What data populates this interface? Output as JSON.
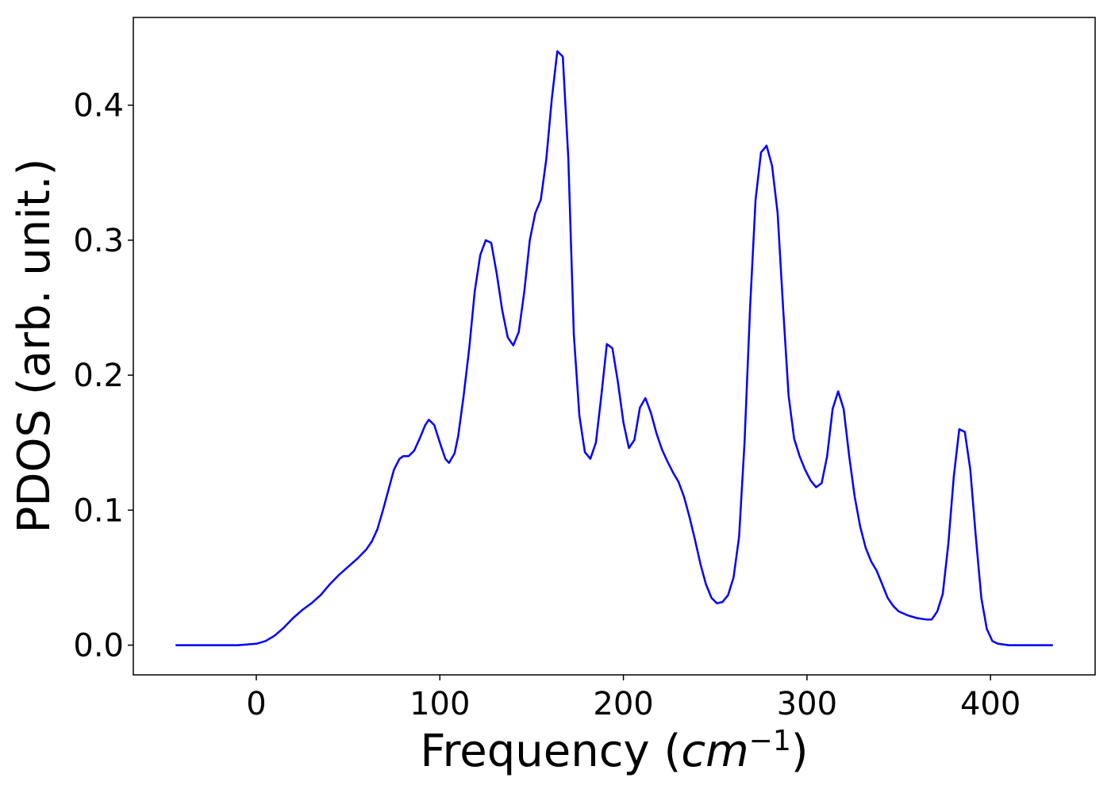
{
  "chart_data": {
    "type": "line",
    "title": "",
    "xlabel": "Frequency (",
    "xlabel_math": "cm",
    "xlabel_sup": "−1",
    "xlabel_close": ")",
    "ylabel": "PDOS (arb. unit.)",
    "xlim": [
      -67,
      457
    ],
    "ylim": [
      -0.022,
      0.465
    ],
    "xticks": [
      0,
      100,
      200,
      300,
      400
    ],
    "xtick_labels": [
      "0",
      "100",
      "200",
      "300",
      "400"
    ],
    "yticks": [
      0.0,
      0.1,
      0.2,
      0.3,
      0.4
    ],
    "ytick_labels": [
      "0.0",
      "0.1",
      "0.2",
      "0.3",
      "0.4"
    ],
    "grid": false,
    "legend": "none",
    "series": [
      {
        "color": "#0000ff",
        "x": [
          -44,
          -10,
          0,
          5,
          10,
          15,
          20,
          25,
          30,
          35,
          40,
          45,
          50,
          55,
          60,
          63,
          66,
          69,
          72,
          75,
          78,
          80,
          83,
          86,
          89,
          92,
          94,
          97,
          100,
          103,
          105,
          108,
          110,
          113,
          116,
          119,
          122,
          125,
          128,
          131,
          134,
          137,
          140,
          143,
          146,
          149,
          152,
          155,
          158,
          161,
          164,
          167,
          170,
          173,
          176,
          179,
          182,
          185,
          188,
          191,
          194,
          197,
          200,
          203,
          206,
          209,
          212,
          215,
          218,
          221,
          224,
          227,
          230,
          233,
          236,
          239,
          242,
          245,
          248,
          251,
          254,
          257,
          260,
          263,
          266,
          269,
          272,
          275,
          278,
          281,
          284,
          287,
          290,
          293,
          296,
          299,
          302,
          305,
          308,
          311,
          314,
          317,
          320,
          323,
          326,
          329,
          332,
          335,
          338,
          341,
          344,
          347,
          350,
          355,
          360,
          365,
          368,
          371,
          374,
          377,
          380,
          383,
          386,
          389,
          392,
          395,
          398,
          401,
          404,
          410,
          434
        ],
        "y": [
          0,
          0,
          0.001,
          0.003,
          0.007,
          0.013,
          0.02,
          0.026,
          0.031,
          0.037,
          0.045,
          0.052,
          0.058,
          0.064,
          0.071,
          0.077,
          0.086,
          0.1,
          0.115,
          0.13,
          0.138,
          0.14,
          0.14,
          0.144,
          0.153,
          0.163,
          0.167,
          0.163,
          0.15,
          0.138,
          0.135,
          0.142,
          0.155,
          0.185,
          0.22,
          0.262,
          0.289,
          0.3,
          0.298,
          0.275,
          0.248,
          0.228,
          0.222,
          0.232,
          0.262,
          0.3,
          0.32,
          0.33,
          0.36,
          0.405,
          0.44,
          0.436,
          0.36,
          0.23,
          0.17,
          0.143,
          0.138,
          0.15,
          0.185,
          0.223,
          0.22,
          0.195,
          0.165,
          0.146,
          0.152,
          0.176,
          0.183,
          0.172,
          0.157,
          0.145,
          0.136,
          0.128,
          0.121,
          0.11,
          0.095,
          0.078,
          0.06,
          0.045,
          0.035,
          0.031,
          0.032,
          0.037,
          0.05,
          0.08,
          0.15,
          0.25,
          0.33,
          0.365,
          0.37,
          0.355,
          0.32,
          0.25,
          0.185,
          0.153,
          0.14,
          0.13,
          0.122,
          0.117,
          0.12,
          0.14,
          0.175,
          0.188,
          0.175,
          0.14,
          0.11,
          0.088,
          0.072,
          0.062,
          0.055,
          0.045,
          0.035,
          0.029,
          0.025,
          0.022,
          0.02,
          0.019,
          0.019,
          0.025,
          0.038,
          0.075,
          0.125,
          0.16,
          0.158,
          0.13,
          0.08,
          0.035,
          0.012,
          0.003,
          0.001,
          0,
          0
        ]
      }
    ]
  }
}
